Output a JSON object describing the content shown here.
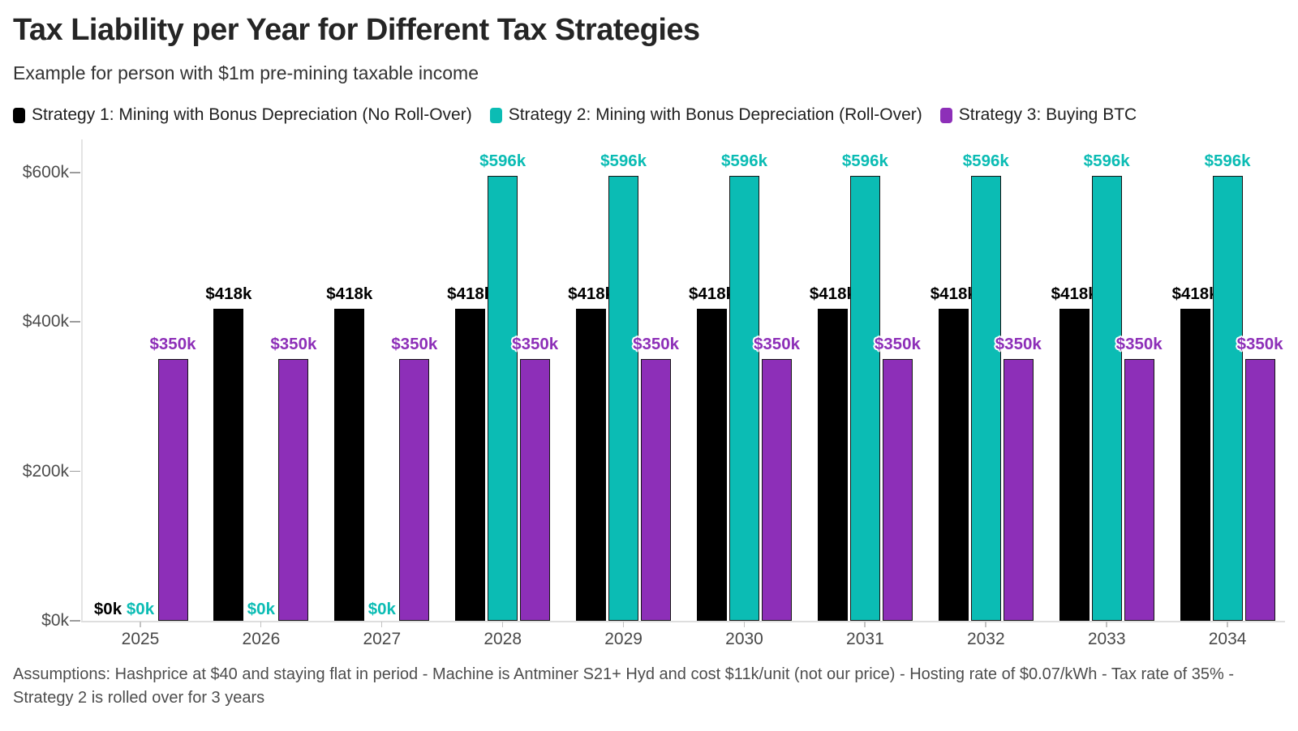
{
  "chart_data": {
    "type": "bar",
    "title": "Tax Liability per Year for Different Tax Strategies",
    "subtitle": "Example for person with $1m pre-mining taxable income",
    "footnote": "Assumptions: Hashprice at $40 and staying flat in period - Machine is Antminer S21+ Hyd and cost $11k/unit (not our price) - Hosting rate of $0.07/kWh - Tax rate of 35% - Strategy 2 is rolled over for 3 years",
    "categories": [
      "2025",
      "2026",
      "2027",
      "2028",
      "2029",
      "2030",
      "2031",
      "2032",
      "2033",
      "2034"
    ],
    "series": [
      {
        "name": "Strategy 1: Mining with Bonus Depreciation (No Roll-Over)",
        "color": "#000000",
        "values": [
          0,
          418,
          418,
          418,
          418,
          418,
          418,
          418,
          418,
          418
        ]
      },
      {
        "name": "Strategy 2: Mining with Bonus Depreciation (Roll-Over)",
        "color": "#0bbcb4",
        "values": [
          0,
          0,
          0,
          596,
          596,
          596,
          596,
          596,
          596,
          596
        ]
      },
      {
        "name": "Strategy 3: Buying BTC",
        "color": "#8d2fb8",
        "values": [
          350,
          350,
          350,
          350,
          350,
          350,
          350,
          350,
          350,
          350
        ]
      }
    ],
    "value_label_prefix": "$",
    "value_label_suffix": "k",
    "xlabel": "",
    "ylabel": "",
    "ylim": [
      0,
      600
    ],
    "y_ticks": [
      {
        "value": 0,
        "label": "$0k"
      },
      {
        "value": 200,
        "label": "$200k"
      },
      {
        "value": 400,
        "label": "$400k"
      },
      {
        "value": 600,
        "label": "$600k"
      }
    ],
    "grid": false,
    "legend_position": "top",
    "bar_value_labels": true
  }
}
